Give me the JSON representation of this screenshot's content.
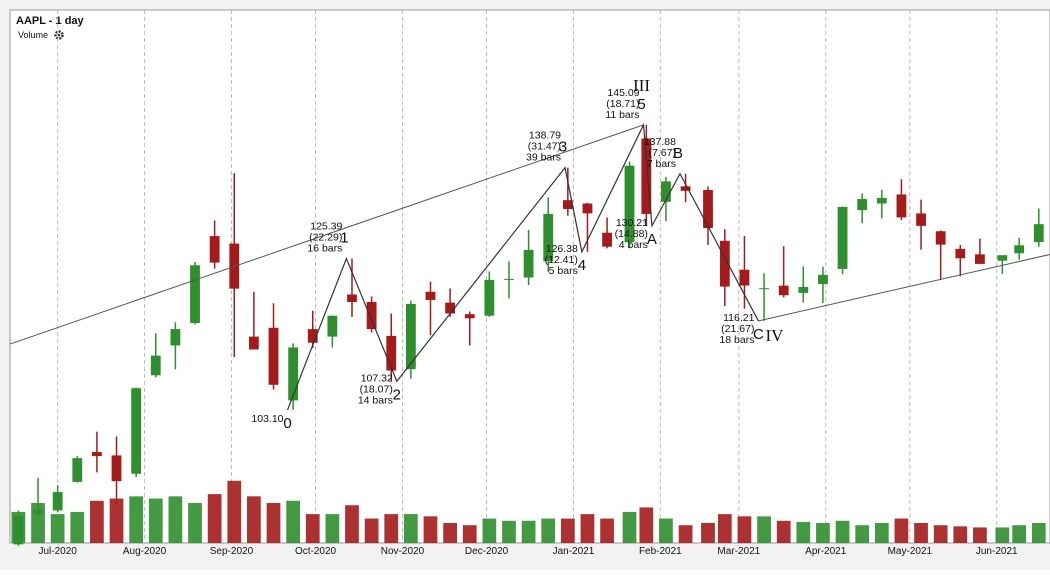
{
  "chart_data": {
    "type": "candlestick",
    "title": "AAPL - 1 day",
    "volume_label": "Volume",
    "up_color": "#2f8f2f",
    "down_color": "#a31b1b",
    "grid": true,
    "xlim": [
      "2020-06-14",
      "2021-06-20"
    ],
    "ylim": [
      83.5,
      162
    ],
    "volume_lim": [
      0,
      450
    ],
    "xticks": [
      {
        "value": "2020-07-01",
        "label": "Jul-2020"
      },
      {
        "value": "2020-08-01",
        "label": "Aug-2020"
      },
      {
        "value": "2020-09-01",
        "label": "Sep-2020"
      },
      {
        "value": "2020-10-01",
        "label": "Oct-2020"
      },
      {
        "value": "2020-11-01",
        "label": "Nov-2020"
      },
      {
        "value": "2020-12-01",
        "label": "Dec-2020"
      },
      {
        "value": "2021-01-01",
        "label": "Jan-2021"
      },
      {
        "value": "2021-02-01",
        "label": "Feb-2021"
      },
      {
        "value": "2021-03-01",
        "label": "Mar-2021"
      },
      {
        "value": "2021-04-01",
        "label": "Apr-2021"
      },
      {
        "value": "2021-05-01",
        "label": "May-2021"
      },
      {
        "value": "2021-06-01",
        "label": "Jun-2021"
      }
    ],
    "x": [
      "2020-06-15",
      "2020-06-22",
      "2020-06-29",
      "2020-07-06",
      "2020-07-13",
      "2020-07-20",
      "2020-07-27",
      "2020-08-03",
      "2020-08-10",
      "2020-08-17",
      "2020-08-24",
      "2020-08-31",
      "2020-09-07",
      "2020-09-14",
      "2020-09-21",
      "2020-09-28",
      "2020-10-05",
      "2020-10-12",
      "2020-10-19",
      "2020-10-26",
      "2020-11-02",
      "2020-11-09",
      "2020-11-16",
      "2020-11-23",
      "2020-11-30",
      "2020-12-07",
      "2020-12-14",
      "2020-12-21",
      "2020-12-28",
      "2021-01-04",
      "2021-01-11",
      "2021-01-19",
      "2021-01-25",
      "2021-02-01",
      "2021-02-08",
      "2021-02-16",
      "2021-02-22",
      "2021-03-01",
      "2021-03-08",
      "2021-03-15",
      "2021-03-22",
      "2021-03-29",
      "2021-04-05",
      "2021-04-12",
      "2021-04-19",
      "2021-04-26",
      "2021-05-03",
      "2021-05-10",
      "2021-05-17",
      "2021-05-24",
      "2021-06-01",
      "2021-06-07",
      "2021-06-14"
    ],
    "open": [
      83.3,
      87.8,
      88.3,
      92.5,
      96.9,
      96.4,
      93.7,
      108.2,
      112.6,
      115.9,
      128.7,
      127.6,
      113.9,
      115.2,
      104.5,
      115.0,
      113.9,
      120.1,
      119.0,
      114.0,
      109.1,
      120.5,
      118.9,
      117.2,
      116.97,
      122.3,
      122.6,
      125.0,
      133.99,
      133.5,
      129.2,
      127.8,
      143.07,
      133.75,
      136.03,
      135.49,
      128.0,
      123.75,
      120.93,
      121.4,
      120.33,
      121.65,
      123.87,
      132.52,
      133.5,
      134.83,
      132.04,
      129.41,
      126.82,
      126.01,
      125.08,
      126.17,
      127.82
    ],
    "high": [
      88.3,
      93.1,
      92.0,
      96.3,
      99.9,
      99.2,
      106.4,
      114.4,
      116.0,
      124.9,
      131.0,
      137.98,
      120.5,
      118.8,
      112.9,
      117.7,
      117.0,
      125.39,
      119.8,
      117.3,
      119.2,
      121.99,
      120.99,
      117.6,
      123.5,
      125.0,
      129.6,
      134.4,
      138.79,
      133.6,
      131.45,
      139.67,
      145.09,
      137.42,
      137.88,
      136.01,
      129.72,
      128.72,
      123.21,
      127.22,
      124.24,
      124.18,
      133.04,
      135.0,
      135.53,
      137.07,
      134.07,
      129.54,
      127.39,
      128.32,
      125.35,
      128.46,
      132.76
    ],
    "low": [
      83.1,
      87.3,
      88.0,
      92.4,
      93.9,
      89.1,
      93.2,
      107.9,
      109.1,
      115.7,
      123.9,
      110.9,
      112.0,
      106.1,
      103.1,
      112.2,
      112.3,
      116.8,
      114.5,
      107.32,
      107.7,
      114.1,
      116.8,
      112.6,
      116.8,
      119.5,
      121.5,
      123.4,
      131.7,
      126.38,
      126.9,
      126.9,
      130.21,
      130.9,
      133.7,
      127.4,
      118.39,
      118.0,
      116.21,
      119.68,
      118.92,
      118.86,
      123.07,
      130.6,
      131.3,
      131.07,
      126.7,
      122.25,
      122.77,
      124.55,
      123.13,
      125.21,
      127.13
    ],
    "close": [
      87.4,
      88.4,
      91.0,
      96.0,
      96.3,
      92.6,
      106.3,
      111.1,
      115.0,
      124.4,
      124.8,
      120.96,
      112.0,
      106.8,
      112.3,
      113.0,
      116.97,
      119.0,
      115.0,
      108.9,
      118.7,
      119.3,
      117.3,
      116.6,
      122.25,
      122.4,
      126.66,
      131.97,
      132.69,
      132.05,
      127.14,
      139.07,
      131.96,
      136.76,
      135.37,
      129.87,
      121.26,
      121.42,
      121.03,
      119.99,
      121.21,
      123.0,
      133.0,
      134.16,
      134.32,
      131.46,
      130.21,
      127.45,
      125.43,
      124.61,
      125.89,
      127.35,
      130.46
    ],
    "volume": [
      140,
      180,
      130,
      140,
      190,
      200,
      210,
      200,
      210,
      180,
      220,
      280,
      210,
      180,
      190,
      130,
      130,
      170,
      110,
      130,
      130,
      120,
      90,
      80,
      110,
      100,
      100,
      110,
      110,
      130,
      110,
      140,
      160,
      110,
      80,
      90,
      130,
      120,
      120,
      100,
      95,
      90,
      100,
      80,
      90,
      110,
      90,
      80,
      75,
      70,
      70,
      80,
      90
    ],
    "waves": [
      {
        "label": "0",
        "date": "2020-09-21",
        "price": 103.1,
        "price_label": "103.10"
      },
      {
        "label": "1",
        "date": "2020-10-12",
        "price": 125.39,
        "change": "(22.29)",
        "bars": "16 bars"
      },
      {
        "label": "2",
        "date": "2020-10-30",
        "price": 107.32,
        "change": "(18.07)",
        "bars": "14 bars"
      },
      {
        "label": "3",
        "date": "2020-12-29",
        "price": 138.79,
        "change": "(31.47)",
        "bars": "39 bars"
      },
      {
        "label": "4",
        "date": "2021-01-04",
        "price": 126.38,
        "change": "(12.41)",
        "bars": "5 bars"
      },
      {
        "label": "5",
        "date": "2021-01-26",
        "price": 145.09,
        "change": "(18.71)",
        "bars": "11 bars",
        "degree": "III"
      },
      {
        "label": "A",
        "date": "2021-01-29",
        "price": 130.21,
        "change": "(14.88)",
        "bars": "4 bars"
      },
      {
        "label": "B",
        "date": "2021-02-08",
        "price": 137.88,
        "change": "(7.67)",
        "bars": "7 bars"
      },
      {
        "label": "C",
        "date": "2021-03-08",
        "price": 116.21,
        "change": "(21.67)",
        "bars": "18 bars",
        "degree": "IV"
      }
    ],
    "trendlines": [
      {
        "x": [
          "2020-06-14",
          "2021-01-26"
        ],
        "y": [
          112.8,
          145.09
        ]
      },
      {
        "x": [
          "2021-03-08",
          "2021-06-20"
        ],
        "y": [
          116.21,
          126.0
        ]
      }
    ]
  }
}
